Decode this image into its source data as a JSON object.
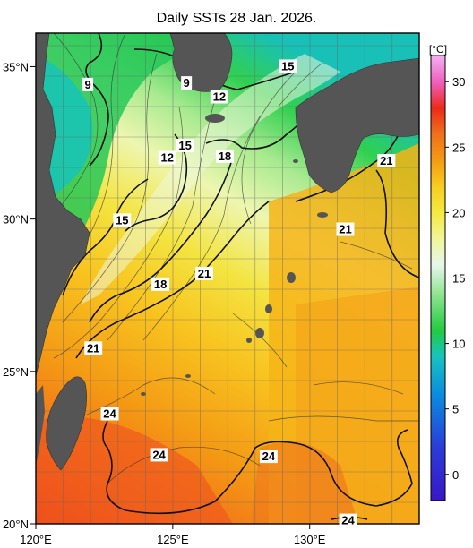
{
  "title": "Daily SSTs 28 Jan. 2026.",
  "unit_label": "[°C]",
  "x_axis": {
    "ticks": [
      {
        "label": "120°E",
        "lon": 120
      },
      {
        "label": "125°E",
        "lon": 125
      },
      {
        "label": "130°E",
        "lon": 130
      }
    ]
  },
  "y_axis": {
    "ticks": [
      {
        "label": "35°N",
        "lat": 35
      },
      {
        "label": "30°N",
        "lat": 30
      },
      {
        "label": "25°N",
        "lat": 25
      },
      {
        "label": "20°N",
        "lat": 20
      }
    ]
  },
  "colorbar": {
    "ticks": [
      "30",
      "25",
      "20",
      "15",
      "10",
      "5",
      "0"
    ],
    "stops": [
      {
        "value": -2,
        "color": "#3a16c8"
      },
      {
        "value": 2,
        "color": "#2a3cd8"
      },
      {
        "value": 6,
        "color": "#0a8ae0"
      },
      {
        "value": 9,
        "color": "#16c4c0"
      },
      {
        "value": 11,
        "color": "#20cc40"
      },
      {
        "value": 14,
        "color": "#9ae69a"
      },
      {
        "value": 16,
        "color": "#e6f7ea"
      },
      {
        "value": 18,
        "color": "#f2f59a"
      },
      {
        "value": 20,
        "color": "#f4ea40"
      },
      {
        "value": 22,
        "color": "#f8cc20"
      },
      {
        "value": 24,
        "color": "#f49a14"
      },
      {
        "value": 26,
        "color": "#f0701a"
      },
      {
        "value": 28,
        "color": "#ec2a1a"
      },
      {
        "value": 30,
        "color": "#f060c0"
      },
      {
        "value": 32,
        "color": "#f4b0f4"
      }
    ]
  },
  "contour_labels": [
    {
      "text": "9",
      "lon": 121.9,
      "lat": 34.4
    },
    {
      "text": "9",
      "lon": 125.5,
      "lat": 34.45
    },
    {
      "text": "12",
      "lon": 126.7,
      "lat": 34.0
    },
    {
      "text": "15",
      "lon": 129.2,
      "lat": 35.0
    },
    {
      "text": "15",
      "lon": 125.45,
      "lat": 32.4
    },
    {
      "text": "12",
      "lon": 124.8,
      "lat": 32.0
    },
    {
      "text": "18",
      "lon": 126.9,
      "lat": 32.05
    },
    {
      "text": "21",
      "lon": 131.3,
      "lat": 29.65
    },
    {
      "text": "21",
      "lon": 132.8,
      "lat": 31.9
    },
    {
      "text": "15",
      "lon": 123.15,
      "lat": 29.95
    },
    {
      "text": "21",
      "lon": 126.15,
      "lat": 28.2
    },
    {
      "text": "18",
      "lon": 124.55,
      "lat": 27.85
    },
    {
      "text": "21",
      "lon": 122.1,
      "lat": 25.75
    },
    {
      "text": "24",
      "lon": 122.7,
      "lat": 23.6
    },
    {
      "text": "24",
      "lon": 124.5,
      "lat": 22.25
    },
    {
      "text": "24",
      "lon": 128.5,
      "lat": 22.2
    },
    {
      "text": "24",
      "lon": 131.4,
      "lat": 20.1
    }
  ]
}
